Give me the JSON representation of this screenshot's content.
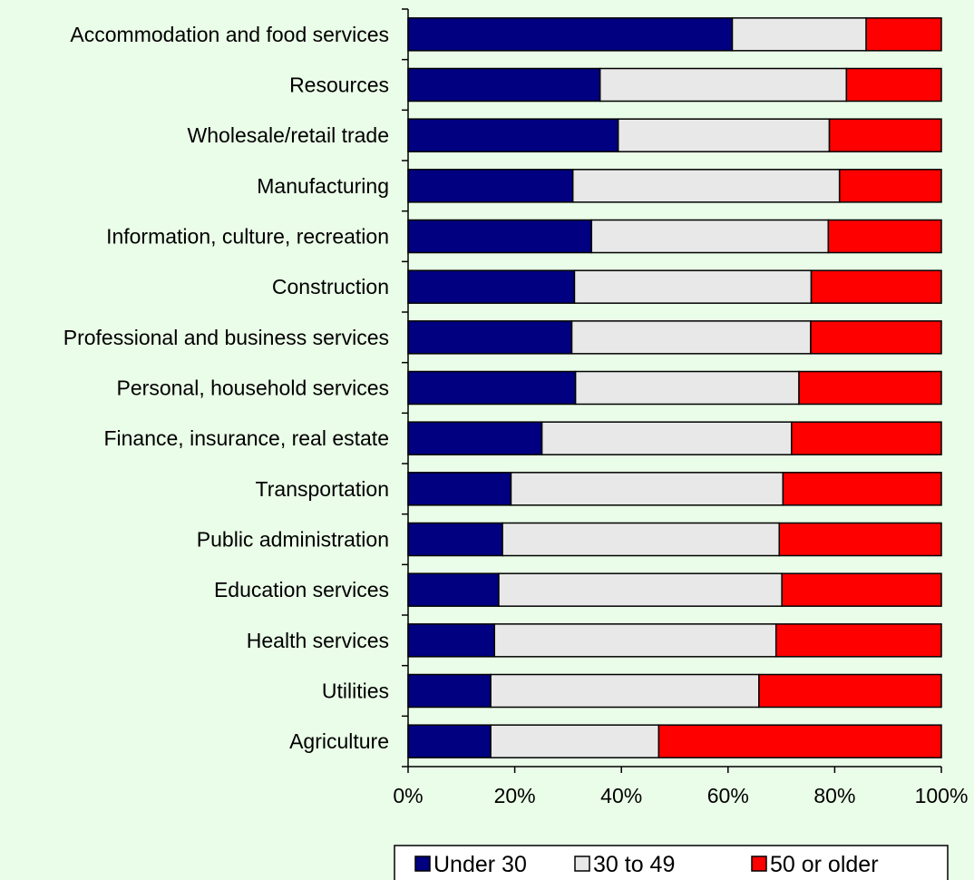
{
  "chart_data": {
    "type": "bar",
    "orientation": "horizontal",
    "stacked": "percent",
    "categories": [
      "Accommodation and food services",
      "Resources",
      "Wholesale/retail trade",
      "Manufacturing",
      "Information, culture, recreation",
      "Construction",
      "Professional and business services",
      "Personal, household services",
      "Finance, insurance, real estate",
      "Transportation",
      "Public administration",
      "Education services",
      "Health services",
      "Utilities",
      "Agriculture"
    ],
    "series": [
      {
        "name": "Under 30",
        "color": "#000080",
        "values": [
          60.8,
          36.0,
          39.4,
          30.9,
          34.4,
          31.2,
          30.7,
          31.4,
          25.1,
          19.3,
          17.7,
          17.0,
          16.2,
          15.5,
          15.5
        ]
      },
      {
        "name": "30 to 49",
        "color": "#e8e8e8",
        "values": [
          25.1,
          46.2,
          39.6,
          50.0,
          44.4,
          44.4,
          44.8,
          41.9,
          46.8,
          51.0,
          51.9,
          53.1,
          52.8,
          50.3,
          31.5
        ]
      },
      {
        "name": "50 or older",
        "color": "#ff0000",
        "values": [
          14.1,
          17.8,
          21.0,
          19.1,
          21.2,
          24.4,
          24.5,
          26.7,
          28.1,
          29.7,
          30.4,
          29.9,
          31.0,
          34.2,
          53.0
        ]
      }
    ],
    "xlim": [
      0,
      100
    ],
    "xticks": [
      "0%",
      "20%",
      "40%",
      "60%",
      "80%",
      "100%"
    ],
    "grid": false,
    "legend_position": "bottom"
  }
}
